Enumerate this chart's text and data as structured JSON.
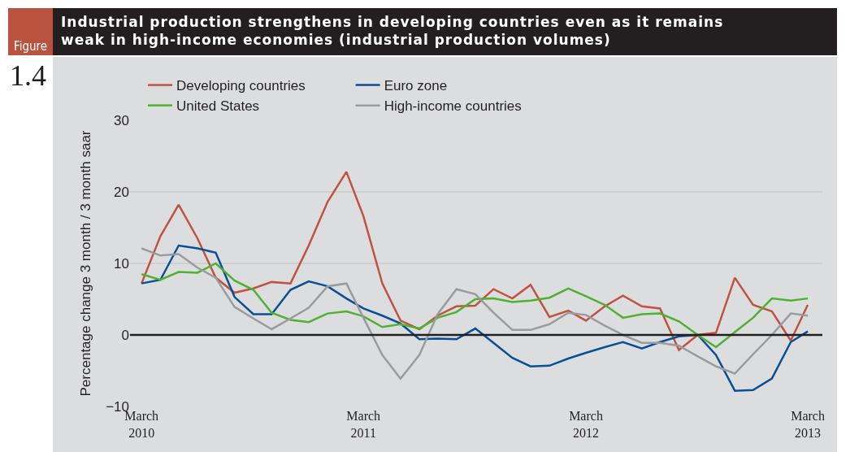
{
  "chart_data": {
    "type": "line",
    "title": "Industrial production strengthens in developing countries even as it remains weak in high-income economies (industrial production volumes)",
    "annotations": [
      "Figure",
      "1.4"
    ],
    "ylabel": "Percentage change 3 month / 3 month saar",
    "x": [
      "2010-03",
      "2010-04",
      "2010-05",
      "2010-06",
      "2010-07",
      "2010-08",
      "2010-09",
      "2010-10",
      "2010-11",
      "2010-12",
      "2011-01",
      "2011-02",
      "2011-03",
      "2011-04",
      "2011-05",
      "2011-06",
      "2011-07",
      "2011-08",
      "2011-09",
      "2011-10",
      "2011-11",
      "2011-12",
      "2012-01",
      "2012-02",
      "2012-03",
      "2012-04",
      "2012-05",
      "2012-06",
      "2012-07",
      "2012-08",
      "2012-09",
      "2012-10",
      "2012-11",
      "2012-12",
      "2013-01",
      "2013-02",
      "2013-03"
    ],
    "series": [
      {
        "name": "Developing countries",
        "color": "#c0533f",
        "values": [
          7.2,
          13.8,
          18.2,
          13.5,
          8.0,
          5.9,
          6.5,
          7.4,
          7.2,
          12.5,
          18.6,
          22.8,
          16.6,
          7.2,
          2.0,
          0.8,
          2.7,
          4.0,
          4.1,
          6.4,
          5.1,
          7.0,
          2.5,
          3.4,
          2.0,
          4.0,
          5.5,
          4.0,
          3.7,
          -2.1,
          0.0,
          0.3,
          8.0,
          4.2,
          3.3,
          -0.8,
          4.2
        ]
      },
      {
        "name": "Euro zone",
        "color": "#0a4f96",
        "values": [
          7.2,
          7.7,
          12.5,
          12.1,
          11.5,
          5.3,
          2.9,
          2.9,
          6.3,
          7.5,
          6.8,
          5.1,
          3.7,
          2.7,
          1.6,
          -0.6,
          -0.5,
          -0.6,
          0.9,
          -1.1,
          -3.2,
          -4.4,
          -4.3,
          -3.3,
          -2.5,
          -1.7,
          -1.0,
          -1.9,
          -1.0,
          -0.2,
          0.0,
          -2.8,
          -7.8,
          -7.7,
          -6.1,
          -1.0,
          0.5
        ]
      },
      {
        "name": "United States",
        "color": "#4fb031",
        "values": [
          8.5,
          7.7,
          8.8,
          8.7,
          10.0,
          7.6,
          6.3,
          3.1,
          2.1,
          1.8,
          3.0,
          3.3,
          2.6,
          1.1,
          1.5,
          0.9,
          2.4,
          3.2,
          5.0,
          5.1,
          4.6,
          4.8,
          5.2,
          6.5,
          5.4,
          4.2,
          2.4,
          2.9,
          3.0,
          1.9,
          0.0,
          -1.7,
          0.4,
          2.4,
          5.1,
          4.8,
          5.1
        ]
      },
      {
        "name": "High-income countries",
        "color": "#9a9b9d",
        "values": [
          12.1,
          11.1,
          11.3,
          9.4,
          8.0,
          3.9,
          2.3,
          0.8,
          2.3,
          3.8,
          6.8,
          7.2,
          2.4,
          -2.8,
          -6.1,
          -2.8,
          2.9,
          6.4,
          5.7,
          3.1,
          0.7,
          0.7,
          1.5,
          3.1,
          2.8,
          1.3,
          0.0,
          -1.1,
          -1.1,
          -1.5,
          -3.0,
          -4.4,
          -5.4,
          -2.7,
          0.0,
          3.0,
          2.7
        ]
      }
    ],
    "xlim": [
      "2010-02-10",
      "2013-03-25"
    ],
    "xticks": [
      {
        "value": "2010-03",
        "label": "March\n2010"
      },
      {
        "value": "2011-03",
        "label": "March\n2011"
      },
      {
        "value": "2012-03",
        "label": "March\n2012"
      },
      {
        "value": "2013-03",
        "label": "March\n2013"
      }
    ],
    "ylim": [
      -10,
      30
    ],
    "yticks": [
      {
        "value": -10,
        "label": "−10"
      },
      0,
      10,
      20,
      30
    ],
    "ref_lines": [
      {
        "axis": "y",
        "value": 0,
        "color": "#231f20"
      }
    ],
    "grid": "y",
    "legend": "top left",
    "marker": "none",
    "line_style": "solid"
  }
}
